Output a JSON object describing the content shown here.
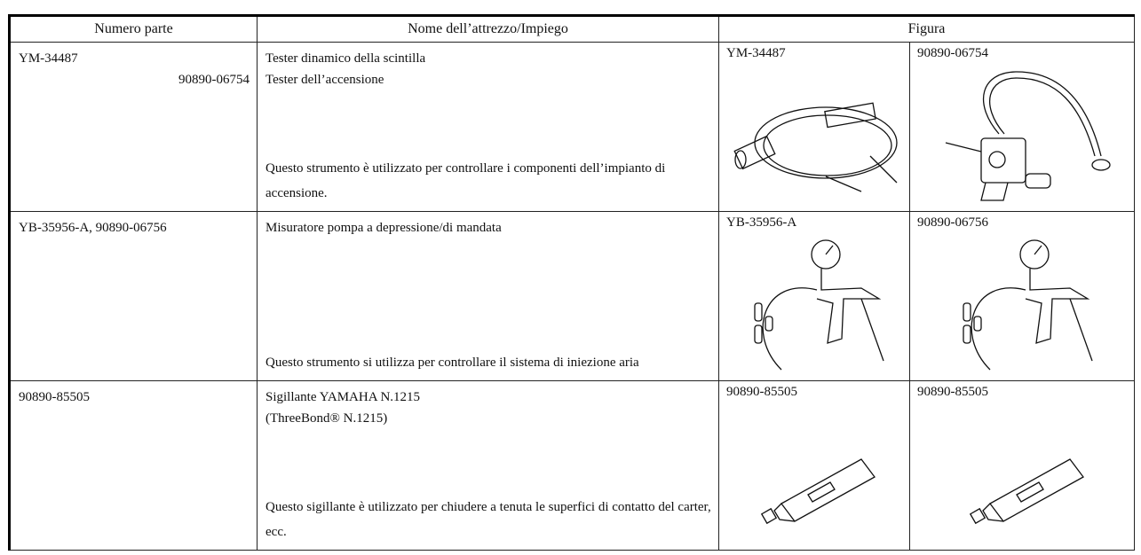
{
  "table": {
    "header": [
      "Numero parte",
      "Nome dell’attrezzo/Impiego",
      "Figura"
    ],
    "rows": [
      {
        "part_numbers": [
          "YM-34487",
          "90890-06754"
        ],
        "name": [
          "Tester dinamico della scintilla",
          "Tester dell’accensione"
        ],
        "usage": "Questo strumento è utilizzato per controllare i componenti dell’impianto di accensione.",
        "figures": [
          "YM-34487",
          "90890-06754"
        ]
      },
      {
        "part_numbers": [
          "YB-35956-A, 90890-06756"
        ],
        "name": [
          "Misuratore pompa a depressione/di mandata"
        ],
        "usage": "Questo strumento si utilizza per controllare il sistema di iniezione aria",
        "figures": [
          "YB-35956-A",
          "90890-06756"
        ]
      },
      {
        "part_numbers": [
          "90890-85505"
        ],
        "name": [
          "Sigillante YAMAHA N.1215",
          "(ThreeBond® N.1215)"
        ],
        "usage": "Questo sigillante è utilizzato per chiudere a tenuta le superfici di contatto del carter, ecc.",
        "figures": [
          "90890-85505",
          "90890-85505"
        ]
      }
    ]
  }
}
